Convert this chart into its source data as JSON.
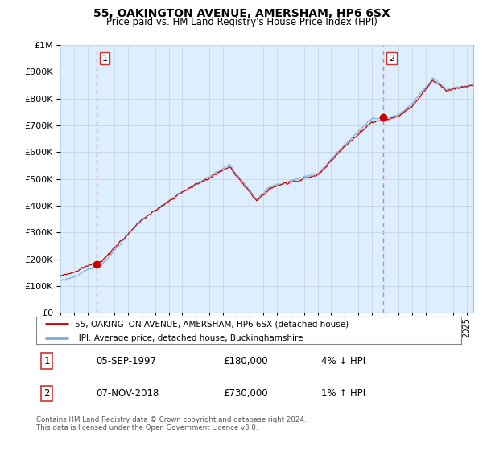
{
  "title": "55, OAKINGTON AVENUE, AMERSHAM, HP6 6SX",
  "subtitle": "Price paid vs. HM Land Registry's House Price Index (HPI)",
  "legend_line1": "55, OAKINGTON AVENUE, AMERSHAM, HP6 6SX (detached house)",
  "legend_line2": "HPI: Average price, detached house, Buckinghamshire",
  "footnote": "Contains HM Land Registry data © Crown copyright and database right 2024.\nThis data is licensed under the Open Government Licence v3.0.",
  "sale1_date": "05-SEP-1997",
  "sale1_price": "£180,000",
  "sale1_hpi": "4% ↓ HPI",
  "sale2_date": "07-NOV-2018",
  "sale2_price": "£730,000",
  "sale2_hpi": "1% ↑ HPI",
  "sale1_year": 1997.67,
  "sale1_value": 180000,
  "sale2_year": 2018.84,
  "sale2_value": 730000,
  "hpi_color": "#7aabdb",
  "price_color": "#cc0000",
  "dashed_color": "#e08080",
  "background_color": "#ddeeff",
  "grid_color": "#c8d8e8",
  "ylim_max": 1000000,
  "xlim_start": 1995.0,
  "xlim_end": 2025.5
}
